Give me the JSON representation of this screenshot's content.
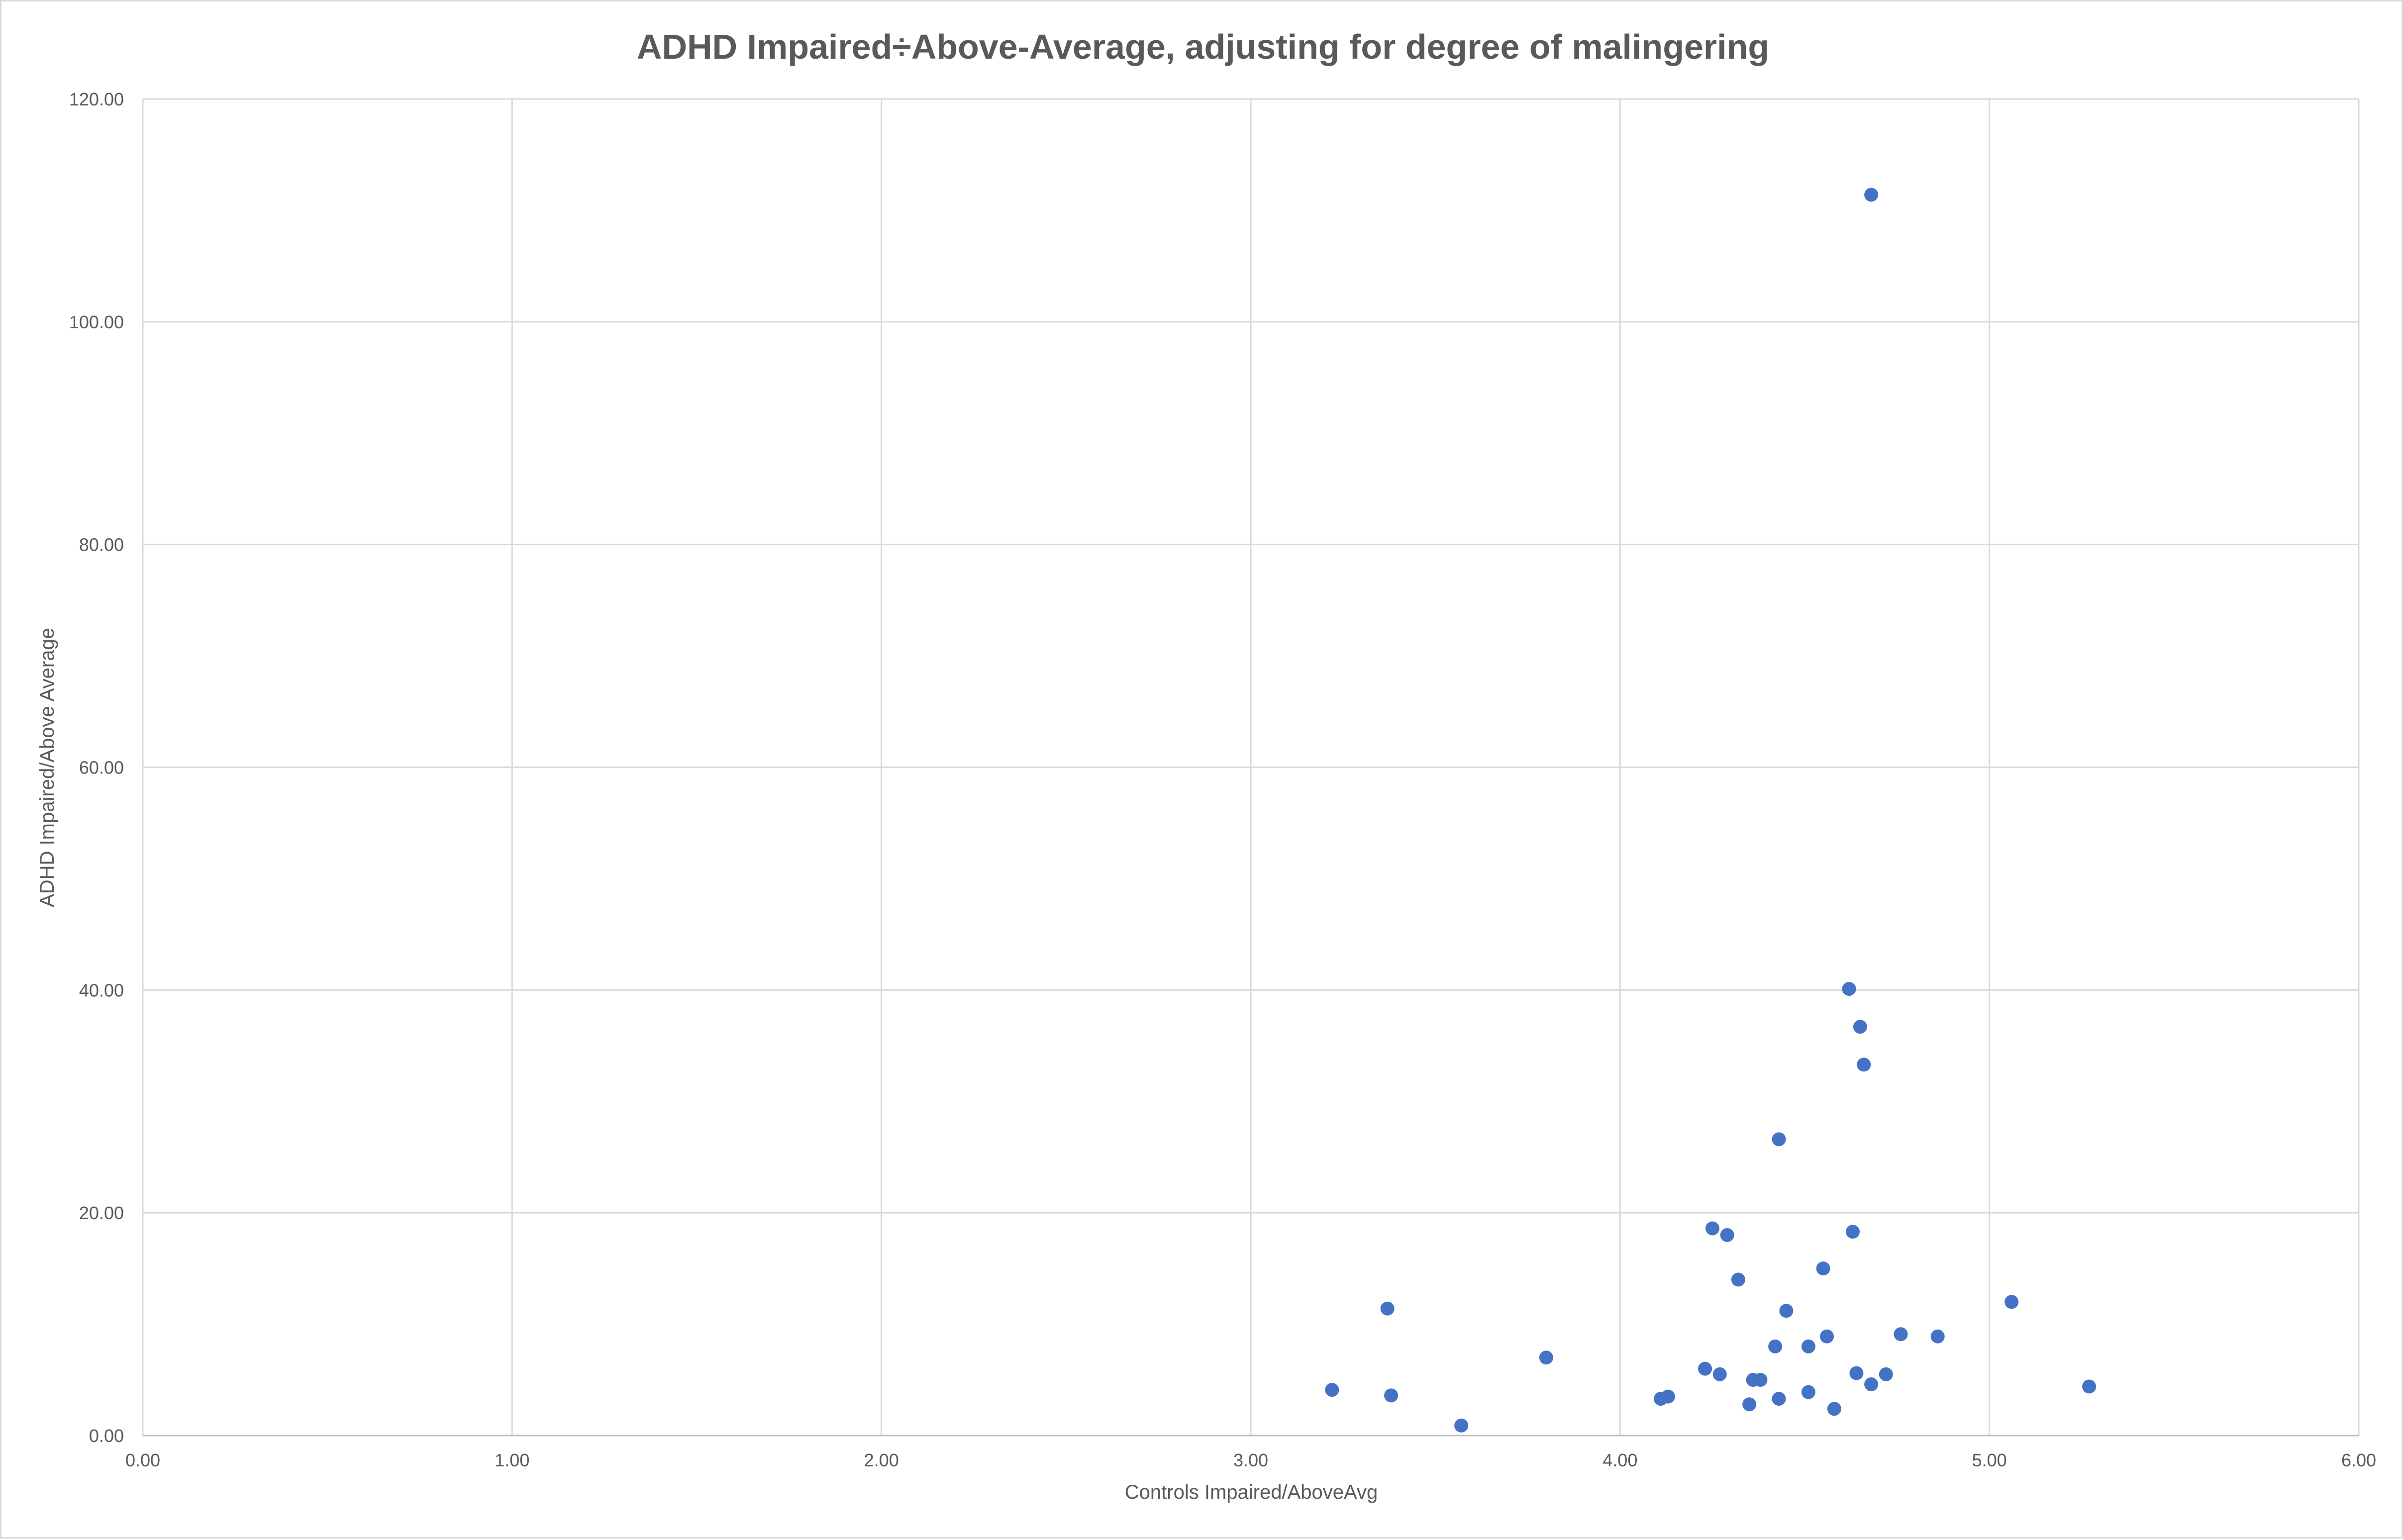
{
  "chart_data": {
    "type": "scatter",
    "title": "ADHD Impaired÷Above-Average, adjusting for degree of malingering",
    "xlabel": "Controls Impaired/AboveAvg",
    "ylabel": "ADHD Impaired/Above Average",
    "xlim": [
      0,
      6
    ],
    "ylim": [
      0,
      120
    ],
    "x_ticks": [
      "0.00",
      "1.00",
      "2.00",
      "3.00",
      "4.00",
      "5.00",
      "6.00"
    ],
    "y_ticks": [
      "0.00",
      "20.00",
      "40.00",
      "60.00",
      "80.00",
      "100.00",
      "120.00"
    ],
    "grid": true,
    "legend": "none",
    "marker_color": "#4472c4",
    "series": [
      {
        "points": [
          [
            3.22,
            4.1
          ],
          [
            3.37,
            11.4
          ],
          [
            3.38,
            3.6
          ],
          [
            3.57,
            0.9
          ],
          [
            3.8,
            7.0
          ],
          [
            4.11,
            3.3
          ],
          [
            4.13,
            3.5
          ],
          [
            4.23,
            6.0
          ],
          [
            4.25,
            18.6
          ],
          [
            4.27,
            5.5
          ],
          [
            4.29,
            18.0
          ],
          [
            4.32,
            14.0
          ],
          [
            4.35,
            2.8
          ],
          [
            4.36,
            5.0
          ],
          [
            4.38,
            5.0
          ],
          [
            4.42,
            8.0
          ],
          [
            4.43,
            26.6
          ],
          [
            4.43,
            3.3
          ],
          [
            4.45,
            11.2
          ],
          [
            4.51,
            3.9
          ],
          [
            4.51,
            8.0
          ],
          [
            4.55,
            15.0
          ],
          [
            4.56,
            8.9
          ],
          [
            4.58,
            2.4
          ],
          [
            4.62,
            40.1
          ],
          [
            4.63,
            18.3
          ],
          [
            4.64,
            5.6
          ],
          [
            4.65,
            36.7
          ],
          [
            4.66,
            33.3
          ],
          [
            4.68,
            4.6
          ],
          [
            4.68,
            111.4
          ],
          [
            4.72,
            5.5
          ],
          [
            4.76,
            9.1
          ],
          [
            4.86,
            8.9
          ],
          [
            5.06,
            12.0
          ],
          [
            5.27,
            4.4
          ]
        ]
      }
    ]
  }
}
